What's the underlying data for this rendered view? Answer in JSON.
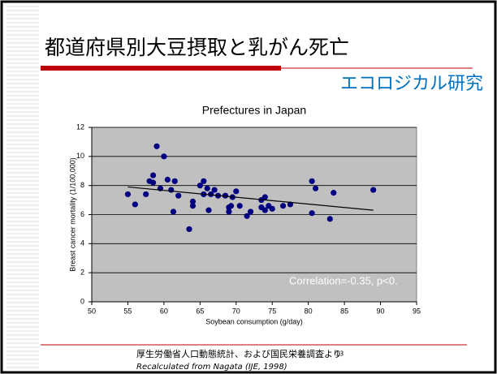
{
  "slide": {
    "title": "都道府県別大豆摂取と乳がん死亡",
    "subtitle": "エコロジカル研究",
    "source": "厚生労働省人口動態統計、および国民栄養調査より",
    "page_number": "13",
    "note": "Recalculated from Nagata (IJE, 1998)"
  },
  "chart_data": {
    "type": "scatter",
    "title": "Prefectures in Japan",
    "x_label": "Soybean consumption (g/day)",
    "y_label": "Breast cancer mortality (1/100,000)",
    "annotation": "Correlation=-0.35, p<0.",
    "color": "#000080",
    "grid": true,
    "xlim": [
      50,
      95
    ],
    "xticks": [
      50,
      55,
      60,
      65,
      70,
      75,
      80,
      85,
      90,
      95
    ],
    "ylim": [
      0,
      12
    ],
    "yticks": [
      0,
      2,
      4,
      6,
      8,
      10,
      12
    ],
    "x": [
      55,
      56,
      57.5,
      58,
      58.5,
      58.5,
      59,
      59.5,
      60,
      60.5,
      61,
      61.3,
      61.5,
      62,
      63.5,
      64,
      64,
      65,
      65.5,
      65.5,
      66,
      66.2,
      66.5,
      67,
      67.5,
      68.5,
      69,
      69,
      69.3,
      69.5,
      70,
      70.5,
      71.5,
      72,
      73.5,
      73.5,
      74,
      74,
      74.5,
      75,
      76.5,
      77.5,
      80.5,
      80.5,
      81,
      83,
      83.5,
      89
    ],
    "values": [
      7.4,
      6.7,
      7.4,
      8.3,
      8.7,
      8.2,
      10.7,
      7.8,
      10.0,
      8.4,
      7.7,
      6.2,
      8.3,
      7.3,
      5.0,
      6.6,
      6.9,
      8.0,
      8.3,
      7.4,
      7.8,
      6.3,
      7.4,
      7.7,
      7.3,
      7.3,
      6.5,
      6.2,
      6.6,
      7.2,
      7.6,
      6.6,
      5.9,
      6.2,
      6.5,
      7.0,
      6.3,
      7.2,
      6.6,
      6.4,
      6.6,
      6.7,
      8.3,
      6.1,
      7.8,
      5.7,
      7.5,
      7.7
    ],
    "trendline": {
      "x": [
        55,
        89
      ],
      "y": [
        7.9,
        6.3
      ]
    }
  }
}
